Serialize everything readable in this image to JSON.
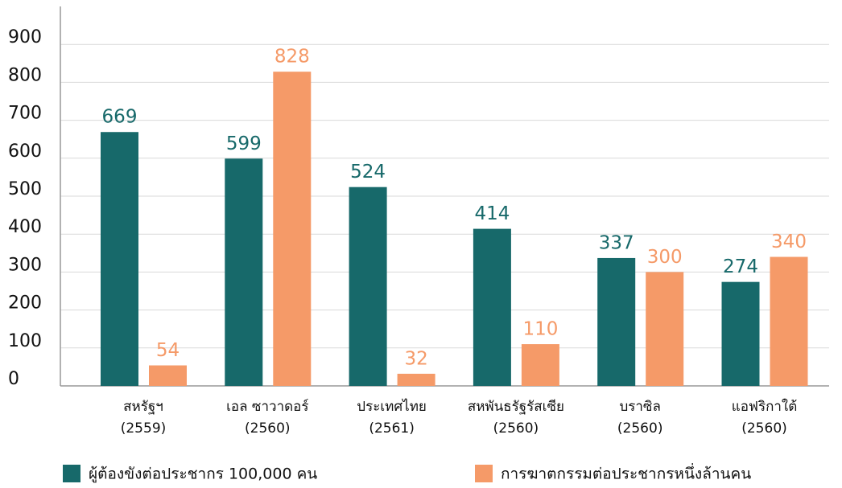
{
  "chart_data": {
    "type": "bar",
    "categories": [
      [
        "สหรัฐฯ",
        "(2559)"
      ],
      [
        "เอล ซาวาดอร์",
        "(2560)"
      ],
      [
        "ประเทศไทย",
        "(2561)"
      ],
      [
        "สหพันธรัฐรัสเซีย",
        "(2560)"
      ],
      [
        "บราซิล",
        "(2560)"
      ],
      [
        "แอฟริกาใต้",
        "(2560)"
      ]
    ],
    "series": [
      {
        "name": "ผู้ต้องขังต่อประชากร 100,000 คน",
        "color": "#17696a",
        "values": [
          669,
          599,
          524,
          414,
          337,
          274
        ]
      },
      {
        "name": "การฆาตกรรมต่อประชากรหนึ่งล้านคน",
        "color": "#f59a68",
        "values": [
          54,
          828,
          32,
          110,
          300,
          340
        ]
      }
    ],
    "ylim": [
      0,
      1000
    ],
    "yticks": [
      0,
      100,
      200,
      300,
      400,
      500,
      600,
      700,
      800,
      900
    ],
    "grid": true
  }
}
